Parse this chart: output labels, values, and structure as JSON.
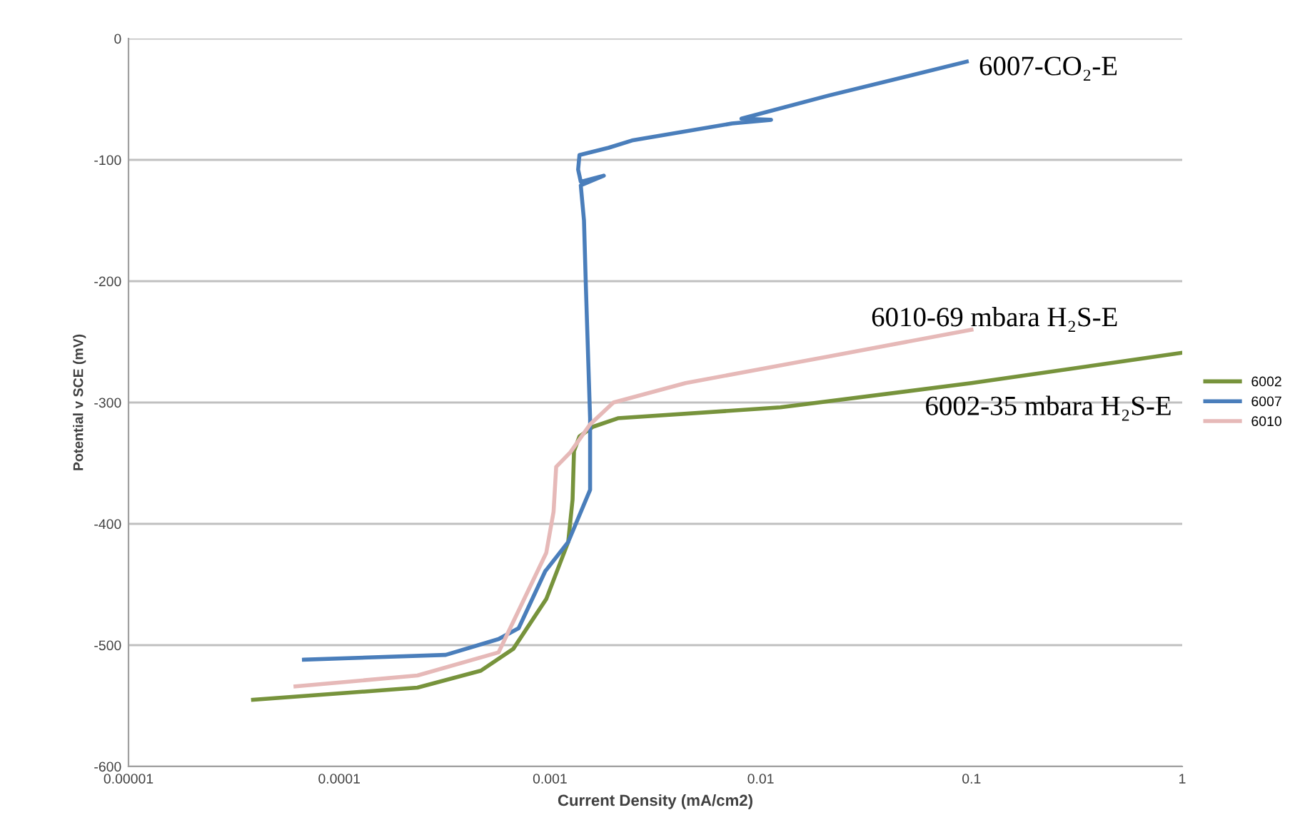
{
  "chart_data": {
    "type": "line",
    "xlabel": "Current Density (mA/cm2)",
    "ylabel": "Potential v SCE (mV)",
    "log": "x",
    "grid": "y",
    "legend": "right",
    "marker": "none",
    "line_style": "solid",
    "xlim": [
      1e-05,
      1
    ],
    "ylim": [
      -600,
      0
    ],
    "xticks": [
      {
        "value": 1e-05,
        "label": "0.00001"
      },
      {
        "value": 0.0001,
        "label": "0.0001"
      },
      {
        "value": 0.001,
        "label": "0.001"
      },
      {
        "value": 0.01,
        "label": "0.01"
      },
      {
        "value": 0.1,
        "label": "0.1"
      },
      {
        "value": 1,
        "label": "1"
      }
    ],
    "yticks": [
      -600,
      -500,
      -400,
      -300,
      -200,
      -100,
      0
    ],
    "series": [
      {
        "name": "6002",
        "color": "#77933c",
        "x": [
          3.9e-05,
          0.000235,
          0.00047,
          0.00067,
          0.00096,
          0.00122,
          0.00128,
          0.0013,
          0.00138,
          0.0016,
          0.0021,
          0.0124,
          0.1,
          1.0
        ],
        "values": [
          -545,
          -535,
          -521,
          -503,
          -462,
          -415,
          -380,
          -340,
          -328,
          -320,
          -313,
          -304,
          -284,
          -259
        ]
      },
      {
        "name": "6007",
        "color": "#4a7ebb",
        "x": [
          6.8e-05,
          0.00032,
          0.00057,
          0.00071,
          0.00095,
          0.00122,
          0.00155,
          0.00155,
          0.00148,
          0.00145,
          0.0014,
          0.0018,
          0.0014,
          0.00136,
          0.00138,
          0.0019,
          0.00245,
          0.0073,
          0.0112,
          0.0081,
          0.021,
          0.095
        ],
        "values": [
          -512,
          -508,
          -495,
          -486,
          -439,
          -415,
          -372,
          -313,
          -204,
          -150,
          -121,
          -113,
          -118,
          -108,
          -96,
          -90,
          -84,
          -70,
          -67,
          -66,
          -47,
          -19
        ]
      },
      {
        "name": "6010",
        "color": "#e6b9b8",
        "x": [
          6.2e-05,
          0.000235,
          0.00057,
          0.00096,
          0.00104,
          0.00107,
          0.00125,
          0.00155,
          0.002,
          0.0044,
          0.021,
          0.1
        ],
        "values": [
          -534,
          -525,
          -506,
          -424,
          -390,
          -353,
          -341,
          -318,
          -300,
          -284,
          -262,
          -240
        ]
      }
    ],
    "annotations": [
      "6007-CO₂-E",
      "6010-69 mbara H₂S-E",
      "6002-35 mbara H₂S-E"
    ]
  }
}
